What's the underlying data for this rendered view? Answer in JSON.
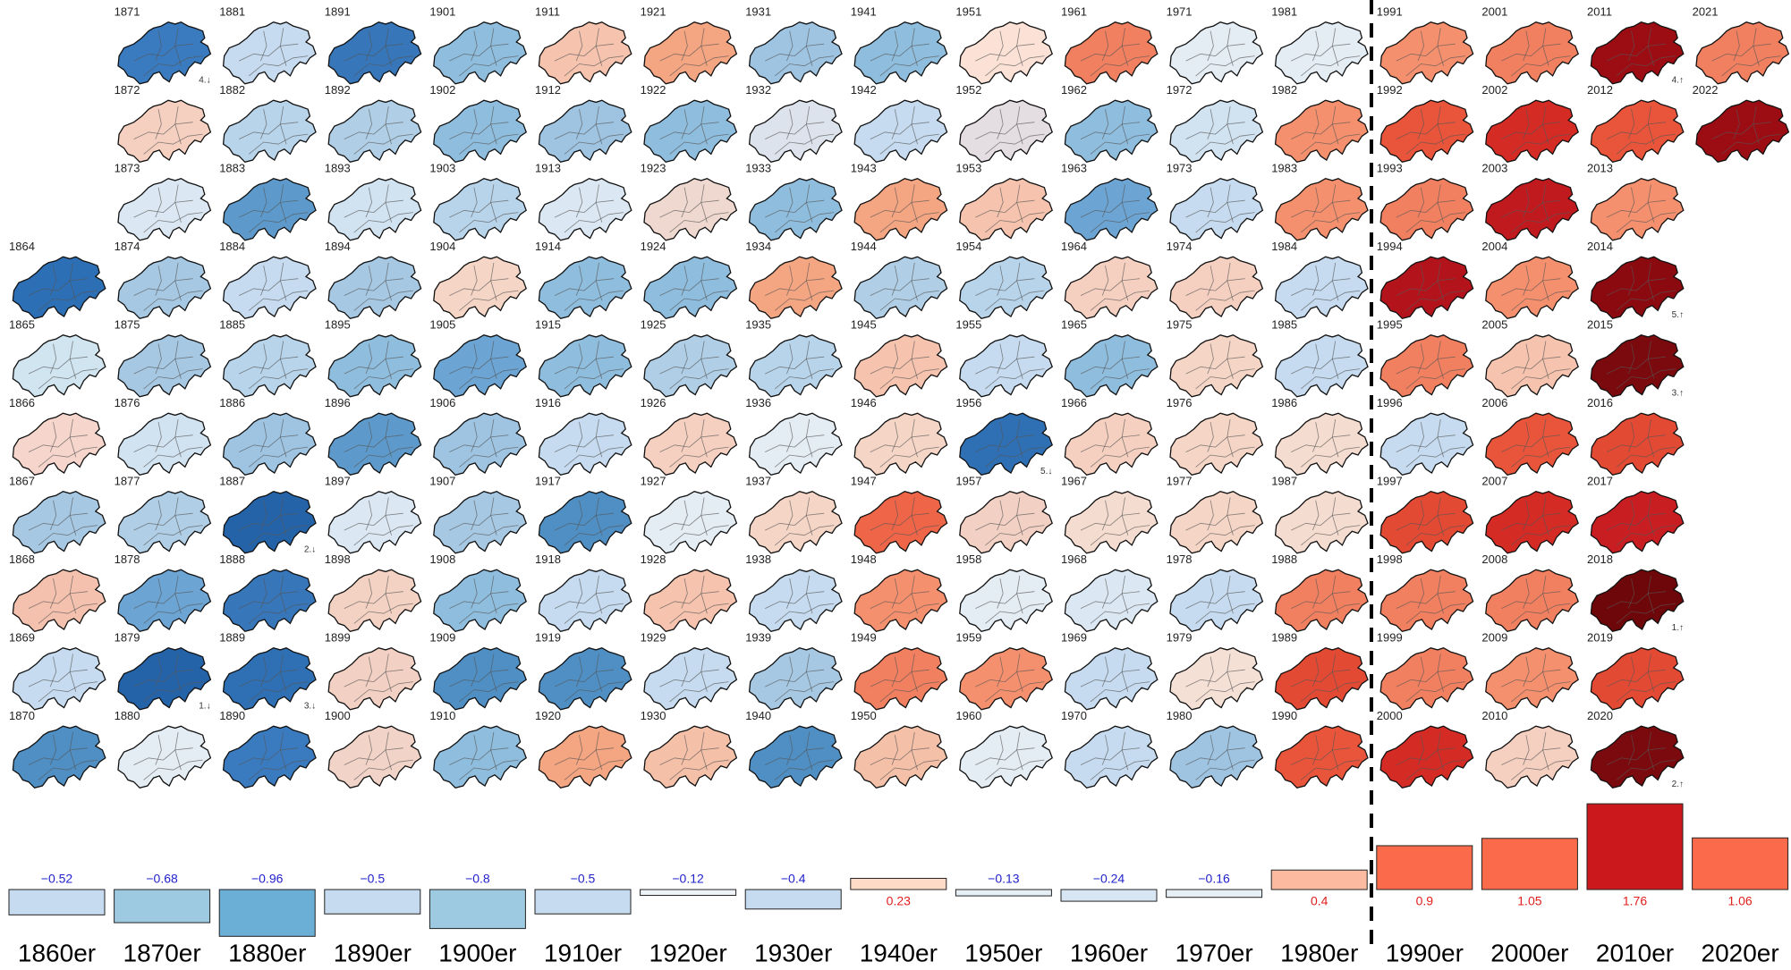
{
  "chart_data": {
    "type": "bar",
    "categories": [
      "1860er",
      "1870er",
      "1880er",
      "1890er",
      "1900er",
      "1910er",
      "1920er",
      "1930er",
      "1940er",
      "1950er",
      "1960er",
      "1970er",
      "1980er",
      "1990er",
      "2000er",
      "2010er",
      "2020er"
    ],
    "values": [
      -0.52,
      -0.68,
      -0.96,
      -0.5,
      -0.8,
      -0.5,
      -0.12,
      -0.4,
      0.23,
      -0.13,
      -0.24,
      -0.16,
      0.4,
      0.9,
      1.05,
      1.76,
      1.06
    ],
    "value_labels": [
      "−0.52",
      "−0.68",
      "−0.96",
      "−0.5",
      "−0.8",
      "−0.5",
      "−0.12",
      "−0.4",
      "0.23",
      "−0.13",
      "−0.24",
      "−0.16",
      "0.4",
      "0.9",
      "1.05",
      "1.76",
      "1.06"
    ],
    "colors": [
      "#c6dbef",
      "#9ecae1",
      "#6baed6",
      "#c6dbef",
      "#9ecae1",
      "#c6dbef",
      "#eef3f8",
      "#c6dbef",
      "#fddbc7",
      "#e6eef6",
      "#d8e5f2",
      "#e6eef6",
      "#fcbba1",
      "#fb6a4a",
      "#fb6a4a",
      "#cb181d",
      "#fb6a4a"
    ],
    "maps": [
      {
        "year": 1864,
        "color": "#2c6fb5"
      },
      {
        "year": 1865,
        "color": "#d1e5f0"
      },
      {
        "year": 1866,
        "color": "#f5d5cc"
      },
      {
        "year": 1867,
        "color": "#a6c8e3"
      },
      {
        "year": 1868,
        "color": "#f4c1ae"
      },
      {
        "year": 1869,
        "color": "#c6dbef"
      },
      {
        "year": 1870,
        "color": "#4f8fc4"
      },
      {
        "year": 1871,
        "color": "#3a7bbf",
        "rank": "4.↓"
      },
      {
        "year": 1872,
        "color": "#f5d0c0"
      },
      {
        "year": 1873,
        "color": "#dbe7f2"
      },
      {
        "year": 1874,
        "color": "#a6c8e3"
      },
      {
        "year": 1875,
        "color": "#a6c8e3"
      },
      {
        "year": 1876,
        "color": "#d1e2f0"
      },
      {
        "year": 1877,
        "color": "#b0cfe6"
      },
      {
        "year": 1878,
        "color": "#6ca4d3"
      },
      {
        "year": 1879,
        "color": "#2563a8",
        "rank": "1.↓"
      },
      {
        "year": 1880,
        "color": "#e4ecf4"
      },
      {
        "year": 1881,
        "color": "#c6dbef"
      },
      {
        "year": 1882,
        "color": "#b8d4ea"
      },
      {
        "year": 1883,
        "color": "#5d9acb"
      },
      {
        "year": 1884,
        "color": "#c6dbef"
      },
      {
        "year": 1885,
        "color": "#b8d4ea"
      },
      {
        "year": 1886,
        "color": "#9ec4e2"
      },
      {
        "year": 1887,
        "color": "#2563a8",
        "rank": "2.↓"
      },
      {
        "year": 1888,
        "color": "#3676b9"
      },
      {
        "year": 1889,
        "color": "#2f70b4",
        "rank": "3.↓"
      },
      {
        "year": 1890,
        "color": "#3a7bbf"
      },
      {
        "year": 1891,
        "color": "#3676b9"
      },
      {
        "year": 1892,
        "color": "#b0cfe6"
      },
      {
        "year": 1893,
        "color": "#d1e2f0"
      },
      {
        "year": 1894,
        "color": "#a6c8e3"
      },
      {
        "year": 1895,
        "color": "#8fbddd"
      },
      {
        "year": 1896,
        "color": "#5d9acb"
      },
      {
        "year": 1897,
        "color": "#dbe7f2"
      },
      {
        "year": 1898,
        "color": "#f3d2c3"
      },
      {
        "year": 1899,
        "color": "#f2d0c4"
      },
      {
        "year": 1900,
        "color": "#f2d3c8"
      },
      {
        "year": 1901,
        "color": "#8fbddd"
      },
      {
        "year": 1902,
        "color": "#8fbddd"
      },
      {
        "year": 1903,
        "color": "#b8d4ea"
      },
      {
        "year": 1904,
        "color": "#f5d5c6"
      },
      {
        "year": 1905,
        "color": "#6ca4d3"
      },
      {
        "year": 1906,
        "color": "#9ec4e2"
      },
      {
        "year": 1907,
        "color": "#a6c8e3"
      },
      {
        "year": 1908,
        "color": "#8fbddd"
      },
      {
        "year": 1909,
        "color": "#4f8fc4"
      },
      {
        "year": 1910,
        "color": "#8fbddd"
      },
      {
        "year": 1911,
        "color": "#f5c3ae"
      },
      {
        "year": 1912,
        "color": "#9ec4e2"
      },
      {
        "year": 1913,
        "color": "#dbe7f2"
      },
      {
        "year": 1914,
        "color": "#8fbddd"
      },
      {
        "year": 1915,
        "color": "#8fbddd"
      },
      {
        "year": 1916,
        "color": "#c6dbef"
      },
      {
        "year": 1917,
        "color": "#4f8fc4"
      },
      {
        "year": 1918,
        "color": "#c6dbef"
      },
      {
        "year": 1919,
        "color": "#4f8fc4"
      },
      {
        "year": 1920,
        "color": "#f4a582"
      },
      {
        "year": 1921,
        "color": "#f4a582"
      },
      {
        "year": 1922,
        "color": "#8fbddd"
      },
      {
        "year": 1923,
        "color": "#efd8cf"
      },
      {
        "year": 1924,
        "color": "#8fbddd"
      },
      {
        "year": 1925,
        "color": "#b0cfe6"
      },
      {
        "year": 1926,
        "color": "#f5d0c0"
      },
      {
        "year": 1927,
        "color": "#e4ecf4"
      },
      {
        "year": 1928,
        "color": "#f5c3ae"
      },
      {
        "year": 1929,
        "color": "#c6dbef"
      },
      {
        "year": 1930,
        "color": "#f5c0a8"
      },
      {
        "year": 1931,
        "color": "#9ec4e2"
      },
      {
        "year": 1932,
        "color": "#dde3ec"
      },
      {
        "year": 1933,
        "color": "#8fbddd"
      },
      {
        "year": 1934,
        "color": "#f4a582"
      },
      {
        "year": 1935,
        "color": "#b8d4ea"
      },
      {
        "year": 1936,
        "color": "#e4ecf4"
      },
      {
        "year": 1937,
        "color": "#f5d5c6"
      },
      {
        "year": 1938,
        "color": "#c6dbef"
      },
      {
        "year": 1939,
        "color": "#a6c8e3"
      },
      {
        "year": 1940,
        "color": "#4f8fc4"
      },
      {
        "year": 1941,
        "color": "#8fbddd"
      },
      {
        "year": 1942,
        "color": "#c6dbef"
      },
      {
        "year": 1943,
        "color": "#f4a582"
      },
      {
        "year": 1944,
        "color": "#b0cfe6"
      },
      {
        "year": 1945,
        "color": "#f5c3ae"
      },
      {
        "year": 1946,
        "color": "#f5d5c6"
      },
      {
        "year": 1947,
        "color": "#ef6548"
      },
      {
        "year": 1948,
        "color": "#f4906e"
      },
      {
        "year": 1949,
        "color": "#f08060"
      },
      {
        "year": 1950,
        "color": "#f5c0a8"
      },
      {
        "year": 1951,
        "color": "#fbe1d6"
      },
      {
        "year": 1952,
        "color": "#e4dde2"
      },
      {
        "year": 1953,
        "color": "#f5c3ae"
      },
      {
        "year": 1954,
        "color": "#b8d4ea"
      },
      {
        "year": 1955,
        "color": "#c6dbef"
      },
      {
        "year": 1956,
        "color": "#2f70b4",
        "rank": "5.↓"
      },
      {
        "year": 1957,
        "color": "#f2d0c4"
      },
      {
        "year": 1958,
        "color": "#e4ecf4"
      },
      {
        "year": 1959,
        "color": "#f4906e"
      },
      {
        "year": 1960,
        "color": "#e4ecf4"
      },
      {
        "year": 1961,
        "color": "#f08060"
      },
      {
        "year": 1962,
        "color": "#8fbddd"
      },
      {
        "year": 1963,
        "color": "#6ca4d3"
      },
      {
        "year": 1964,
        "color": "#f5d0c0"
      },
      {
        "year": 1965,
        "color": "#8fbddd"
      },
      {
        "year": 1966,
        "color": "#f5d0c0"
      },
      {
        "year": 1967,
        "color": "#f5dcd0"
      },
      {
        "year": 1968,
        "color": "#dbe7f2"
      },
      {
        "year": 1969,
        "color": "#c6dbef"
      },
      {
        "year": 1970,
        "color": "#c6dbef"
      },
      {
        "year": 1971,
        "color": "#e4ecf4"
      },
      {
        "year": 1972,
        "color": "#d1e2f0"
      },
      {
        "year": 1973,
        "color": "#c6dbef"
      },
      {
        "year": 1974,
        "color": "#f5d0c0"
      },
      {
        "year": 1975,
        "color": "#f5d5c6"
      },
      {
        "year": 1976,
        "color": "#f5d5c6"
      },
      {
        "year": 1977,
        "color": "#f5d5c6"
      },
      {
        "year": 1978,
        "color": "#c6dbef"
      },
      {
        "year": 1979,
        "color": "#f5e0d6"
      },
      {
        "year": 1980,
        "color": "#9ec4e2"
      },
      {
        "year": 1981,
        "color": "#e4ecf4"
      },
      {
        "year": 1982,
        "color": "#f4906e"
      },
      {
        "year": 1983,
        "color": "#f4906e"
      },
      {
        "year": 1984,
        "color": "#c6dbef"
      },
      {
        "year": 1985,
        "color": "#c6dbef"
      },
      {
        "year": 1986,
        "color": "#f5dcd0"
      },
      {
        "year": 1987,
        "color": "#f5dcd0"
      },
      {
        "year": 1988,
        "color": "#f08060"
      },
      {
        "year": 1989,
        "color": "#e34a33"
      },
      {
        "year": 1990,
        "color": "#e8553a"
      },
      {
        "year": 1991,
        "color": "#f4906e"
      },
      {
        "year": 1992,
        "color": "#e8553a"
      },
      {
        "year": 1993,
        "color": "#f08060"
      },
      {
        "year": 1994,
        "color": "#b3141c"
      },
      {
        "year": 1995,
        "color": "#f08060"
      },
      {
        "year": 1996,
        "color": "#c6dbef"
      },
      {
        "year": 1997,
        "color": "#e34a33"
      },
      {
        "year": 1998,
        "color": "#f08060"
      },
      {
        "year": 1999,
        "color": "#f08060"
      },
      {
        "year": 2000,
        "color": "#d42b25"
      },
      {
        "year": 2001,
        "color": "#f08060"
      },
      {
        "year": 2002,
        "color": "#d42b25"
      },
      {
        "year": 2003,
        "color": "#c01a1f"
      },
      {
        "year": 2004,
        "color": "#f4906e"
      },
      {
        "year": 2005,
        "color": "#f5c3ae"
      },
      {
        "year": 2006,
        "color": "#e8553a"
      },
      {
        "year": 2007,
        "color": "#d42b25"
      },
      {
        "year": 2008,
        "color": "#f08060"
      },
      {
        "year": 2009,
        "color": "#f4906e"
      },
      {
        "year": 2010,
        "color": "#f5d0c0"
      },
      {
        "year": 2011,
        "color": "#9b0d13",
        "rank": "4.↑"
      },
      {
        "year": 2012,
        "color": "#e8553a"
      },
      {
        "year": 2013,
        "color": "#f4906e"
      },
      {
        "year": 2014,
        "color": "#8b0a10",
        "rank": "5.↑"
      },
      {
        "year": 2015,
        "color": "#7a0a0e",
        "rank": "3.↑"
      },
      {
        "year": 2016,
        "color": "#e34a33"
      },
      {
        "year": 2017,
        "color": "#c81e22"
      },
      {
        "year": 2018,
        "color": "#6e0709",
        "rank": "1.↑"
      },
      {
        "year": 2019,
        "color": "#e34a33"
      },
      {
        "year": 2020,
        "color": "#7a0a0e",
        "rank": "2.↑"
      },
      {
        "year": 2021,
        "color": "#f08060"
      },
      {
        "year": 2022,
        "color": "#9b0d13"
      }
    ]
  }
}
